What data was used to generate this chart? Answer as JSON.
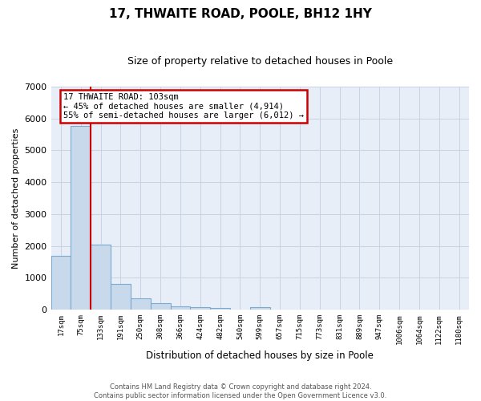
{
  "title": "17, THWAITE ROAD, POOLE, BH12 1HY",
  "subtitle": "Size of property relative to detached houses in Poole",
  "xlabel": "Distribution of detached houses by size in Poole",
  "ylabel": "Number of detached properties",
  "categories": [
    "17sqm",
    "75sqm",
    "133sqm",
    "191sqm",
    "250sqm",
    "308sqm",
    "366sqm",
    "424sqm",
    "482sqm",
    "540sqm",
    "599sqm",
    "657sqm",
    "715sqm",
    "773sqm",
    "831sqm",
    "889sqm",
    "947sqm",
    "1006sqm",
    "1064sqm",
    "1122sqm",
    "1180sqm"
  ],
  "values": [
    1700,
    5750,
    2050,
    800,
    350,
    200,
    100,
    80,
    60,
    0,
    80,
    0,
    0,
    0,
    0,
    0,
    0,
    0,
    0,
    0,
    0
  ],
  "bar_color": "#c9d9ec",
  "bar_edge_color": "#7aaad0",
  "vline_color": "#cc0000",
  "annotation_text": "17 THWAITE ROAD: 103sqm\n← 45% of detached houses are smaller (4,914)\n55% of semi-detached houses are larger (6,012) →",
  "annotation_box_color": "#ffffff",
  "annotation_box_edge": "#cc0000",
  "grid_color": "#c8d4e4",
  "plot_bg_color": "#e8eef8",
  "ylim": [
    0,
    7000
  ],
  "yticks": [
    0,
    1000,
    2000,
    3000,
    4000,
    5000,
    6000,
    7000
  ],
  "footer_line1": "Contains HM Land Registry data © Crown copyright and database right 2024.",
  "footer_line2": "Contains public sector information licensed under the Open Government Licence v3.0."
}
